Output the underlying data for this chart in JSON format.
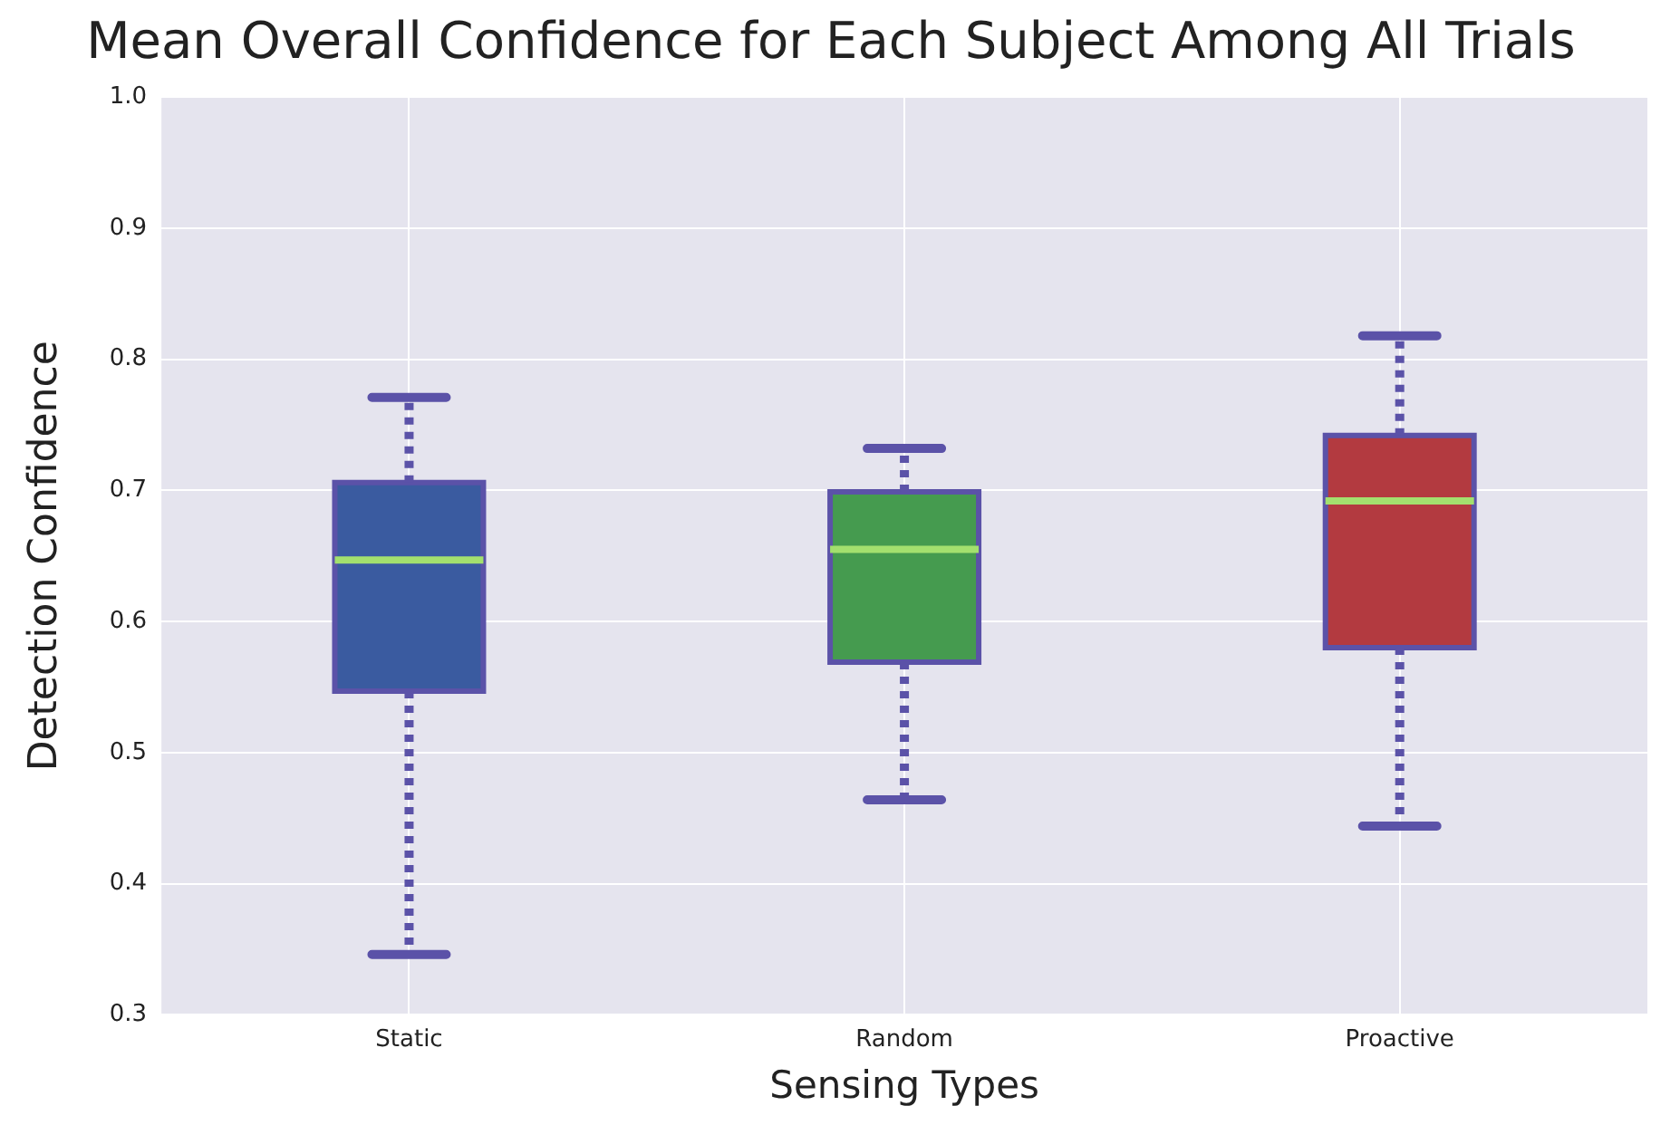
{
  "chart_data": {
    "type": "box",
    "title": "Mean Overall Confidence for Each Subject Among All Trials",
    "xlabel": "Sensing Types",
    "ylabel": "Detection Confidence",
    "categories": [
      "Static",
      "Random",
      "Proactive"
    ],
    "boxes": [
      {
        "low": 0.346,
        "q1": 0.547,
        "median": 0.647,
        "q3": 0.706,
        "high": 0.771
      },
      {
        "low": 0.464,
        "q1": 0.569,
        "median": 0.655,
        "q3": 0.699,
        "high": 0.732
      },
      {
        "low": 0.444,
        "q1": 0.58,
        "median": 0.692,
        "q3": 0.742,
        "high": 0.818
      }
    ],
    "colors": [
      "#3a5ba0",
      "#459b4f",
      "#b33a40"
    ],
    "ylim": [
      0.3,
      1.0
    ],
    "yticks": [
      {
        "value": 0.3,
        "label": "0.3"
      },
      {
        "value": 0.4,
        "label": "0.4"
      },
      {
        "value": 0.5,
        "label": "0.5"
      },
      {
        "value": 0.6,
        "label": "0.6"
      },
      {
        "value": 0.7,
        "label": "0.7"
      },
      {
        "value": 0.8,
        "label": "0.8"
      },
      {
        "value": 0.9,
        "label": "0.9"
      },
      {
        "value": 1.0,
        "label": "1.0"
      }
    ],
    "grid": true,
    "line_style": "dotted",
    "legend": false
  }
}
